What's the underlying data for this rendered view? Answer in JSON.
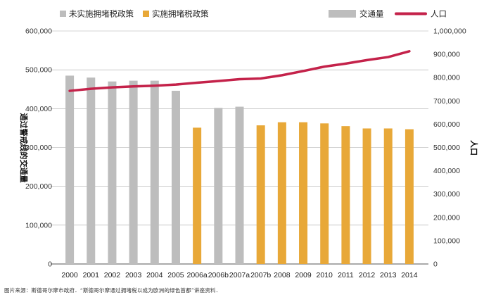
{
  "chart_data": {
    "type": "bar+line",
    "categories": [
      "2000",
      "2001",
      "2002",
      "2003",
      "2004",
      "2005",
      "2006a",
      "2006b",
      "2007a",
      "2007b",
      "2008",
      "2009",
      "2010",
      "2011",
      "2012",
      "2013",
      "2014"
    ],
    "series": [
      {
        "name": "交通量",
        "axis": "left",
        "type": "bar",
        "values": [
          485000,
          480000,
          470000,
          472000,
          472000,
          446000,
          351000,
          402000,
          405000,
          357000,
          365000,
          365000,
          362000,
          355000,
          349000,
          349000,
          347000
        ],
        "policy": [
          "none",
          "none",
          "none",
          "none",
          "none",
          "none",
          "tax",
          "none",
          "none",
          "tax",
          "tax",
          "tax",
          "tax",
          "tax",
          "tax",
          "tax",
          "tax"
        ]
      },
      {
        "name": "人口",
        "axis": "right",
        "type": "line",
        "values": [
          743000,
          752000,
          758000,
          762000,
          765000,
          770000,
          778000,
          785000,
          793000,
          796000,
          810000,
          828000,
          847000,
          860000,
          875000,
          888000,
          913000
        ]
      }
    ],
    "legend": {
      "no_tax": "未实施拥堵税政策",
      "tax": "实施拥堵税政策",
      "traffic": "交通量",
      "population": "人口"
    },
    "ylabel_left": "通过警戒线的交通量",
    "ylabel_right": "人口",
    "ylim_left": [
      0,
      600000
    ],
    "ylim_right": [
      0,
      1000000
    ],
    "yticks_left": [
      "0",
      "100,000",
      "200,000",
      "300,000",
      "400,000",
      "500,000",
      "600,000"
    ],
    "yticks_right": [
      "0",
      "100,000",
      "200,000",
      "300,000",
      "400,000",
      "500,000",
      "600,000",
      "700,000",
      "800,000",
      "900,000",
      "1,000,000"
    ],
    "grid": true,
    "legend_position": "top",
    "colors": {
      "no_tax": "#bdbdbd",
      "tax": "#e8a838",
      "population": "#c4224a",
      "grid": "#aaaaaa"
    }
  },
  "source": "图片来源：斯德哥尔摩市政府．“斯德哥尔摩通过拥堵税以成为欧洲的绿色首都”讲座资料．"
}
